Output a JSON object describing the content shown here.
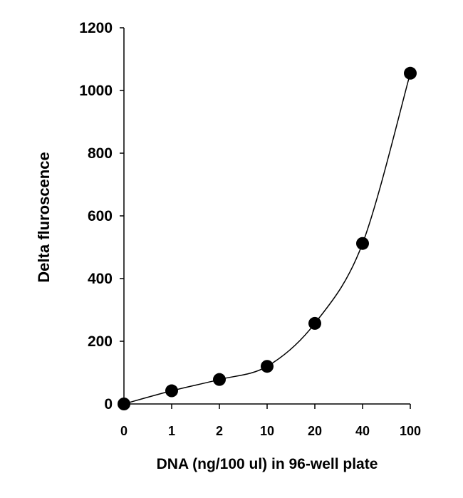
{
  "chart_data": {
    "type": "scatter",
    "title": "",
    "xlabel": "DNA (ng/100 ul) in 96-well plate",
    "ylabel": "Delta fluroscence",
    "categories": [
      "0",
      "1",
      "2",
      "10",
      "20",
      "40",
      "100"
    ],
    "series": [
      {
        "values": [
          0,
          42,
          78,
          120,
          257,
          512,
          1055
        ]
      }
    ],
    "ylim": [
      0,
      1200
    ],
    "yticks": [
      0,
      200,
      400,
      600,
      800,
      1000,
      1200
    ],
    "grid": false,
    "legend": "none",
    "fit_line": "smooth curve through points",
    "colors": {
      "marker": "#000000",
      "line": "#000000",
      "axis": "#000000"
    }
  }
}
